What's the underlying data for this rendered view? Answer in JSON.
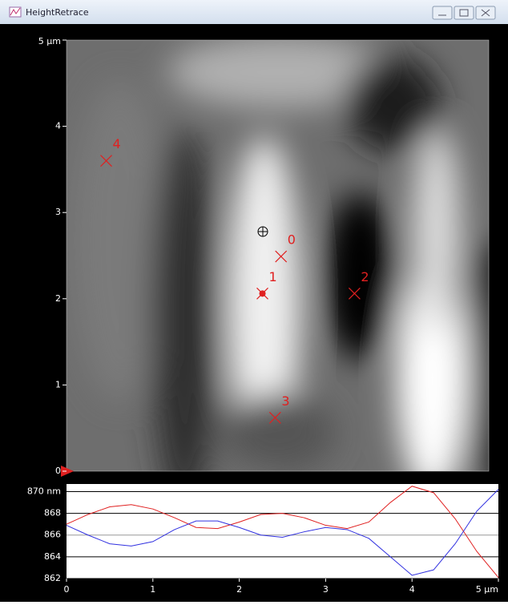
{
  "window": {
    "title": "HeightRetrace"
  },
  "image": {
    "xlim": [
      0,
      5
    ],
    "ylim": [
      0,
      5
    ],
    "yticks": [
      0,
      1,
      2,
      3,
      4,
      {
        "value": 5,
        "label": "5 µm"
      }
    ],
    "markers": [
      {
        "label": "0",
        "x": 2.54,
        "y": 2.49
      },
      {
        "label": "1",
        "x": 2.32,
        "y": 2.06
      },
      {
        "label": "2",
        "x": 3.41,
        "y": 2.06
      },
      {
        "label": "3",
        "x": 2.47,
        "y": 0.62
      },
      {
        "label": "4",
        "x": 0.47,
        "y": 3.6
      }
    ]
  },
  "profile": {
    "type": "line",
    "x": [
      0,
      0.25,
      0.5,
      0.75,
      1,
      1.25,
      1.5,
      1.75,
      2,
      2.25,
      2.5,
      2.75,
      3,
      3.25,
      3.5,
      3.75,
      4,
      4.25,
      4.5,
      4.75,
      5
    ],
    "xlim": [
      0,
      5
    ],
    "xticks": [
      0,
      1,
      2,
      3,
      4,
      {
        "value": 5,
        "label": "5 µm"
      }
    ],
    "ylim": [
      862,
      870.7
    ],
    "yticks": [
      862,
      864,
      866,
      868,
      {
        "value": 870,
        "label": "870 nm"
      }
    ],
    "series": [
      {
        "color": "#e02020",
        "values": [
          867,
          867.9,
          868.6,
          868.8,
          868.4,
          867.6,
          866.7,
          866.6,
          867.2,
          867.9,
          868.0,
          867.6,
          866.9,
          866.6,
          867.2,
          869.0,
          870.5,
          869.9,
          867.5,
          864.5,
          862.1
        ]
      },
      {
        "color": "#3030e0",
        "values": [
          866.9,
          866.0,
          865.2,
          865.0,
          865.4,
          866.5,
          867.3,
          867.3,
          866.7,
          866.0,
          865.8,
          866.3,
          866.7,
          866.5,
          865.7,
          864.0,
          862.3,
          862.8,
          865.2,
          868.2,
          870.2
        ]
      }
    ]
  }
}
